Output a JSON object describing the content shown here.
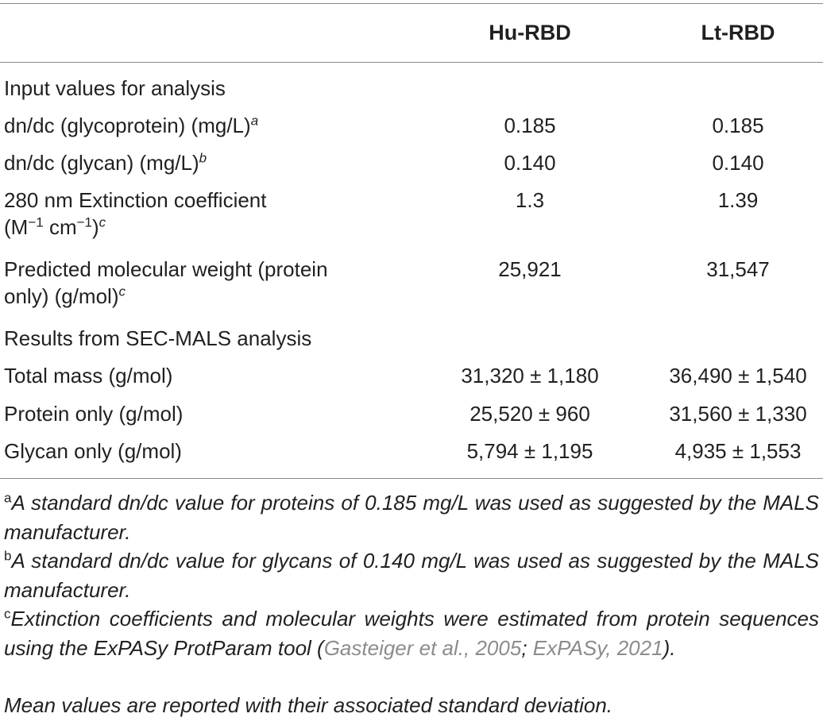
{
  "table": {
    "columns": [
      "",
      "Hu-RBD",
      "Lt-RBD"
    ],
    "sections": {
      "input": "Input values for analysis",
      "results": "Results from SEC-MALS analysis"
    },
    "rows": [
      {
        "label": "dn/dc (glycoprotein) (mg/L)",
        "mark": "a",
        "hu": "0.185",
        "lt": "0.185"
      },
      {
        "label": "dn/dc (glycan) (mg/L)",
        "mark": "b",
        "hu": "0.140",
        "lt": "0.140"
      },
      {
        "label_line1": "280 nm Extinction coefficient",
        "label_line2_pre": "(M",
        "exp1": "−1",
        "label_line2_mid": " cm",
        "exp2": "−1",
        "label_line2_post": ")",
        "mark": "c",
        "hu": "1.3",
        "lt": "1.39"
      },
      {
        "label_line1": "Predicted molecular weight (protein",
        "label_line2": "only) (g/mol)",
        "mark": "c",
        "hu": "25,921",
        "lt": "31,547"
      },
      {
        "label": "Total mass (g/mol)",
        "hu": "31,320 ± 1,180",
        "lt": "36,490 ± 1,540"
      },
      {
        "label": "Protein only (g/mol)",
        "hu": "25,520 ± 960",
        "lt": "31,560 ± 1,330"
      },
      {
        "label": "Glycan only (g/mol)",
        "hu": "5,794 ± 1,195",
        "lt": "4,935 ± 1,553"
      }
    ]
  },
  "footnotes": {
    "a_mark": "a",
    "a_text": "A standard dn/dc value for proteins of 0.185 mg/L was used as suggested by the MALS manufacturer.",
    "b_mark": "b",
    "b_text": "A standard dn/dc value for glycans of 0.140 mg/L was used as suggested by the MALS manufacturer.",
    "c_mark": "c",
    "c_text_pre": "Extinction coefficients and molecular weights were estimated from protein sequences using the ExPASy ProtParam tool (",
    "c_cite1": "Gasteiger et al., 2005",
    "c_sep": "; ",
    "c_cite2": "ExPASy, 2021",
    "c_text_post": ").",
    "note": "Mean values are reported with their associated standard deviation."
  },
  "colors": {
    "text": "#231f20",
    "rule": "#8a8a8a",
    "citation_link": "#8c8c8c"
  }
}
